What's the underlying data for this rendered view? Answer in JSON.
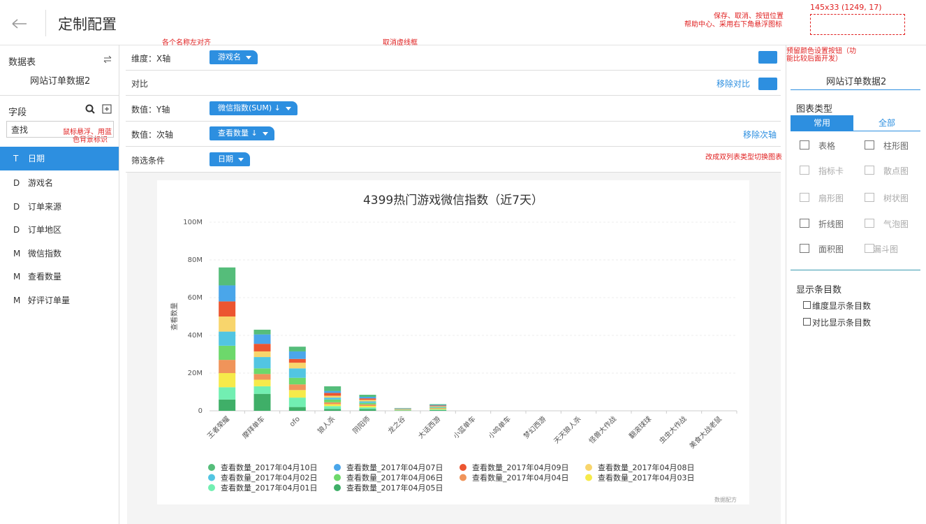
{
  "header": {
    "title": "定制配置"
  },
  "annotations": [
    "145x33 (1249, 17)",
    "保存、取消、按钮位置",
    "帮助中心、采用右下角悬浮图标",
    "各个名称左对齐",
    "取消虚线框",
    "预留颜色设置按钮（功",
    "能比较后面开发）",
    "鼠标悬浮、用蓝",
    "色背景标识",
    "改成双列表类型切换图表"
  ],
  "left": {
    "table_label": "数据表",
    "table_name": "网站订单数据2",
    "fields_label": "字段",
    "search_placeholder": "查找",
    "fields": [
      {
        "type": "T",
        "name": "日期"
      },
      {
        "type": "D",
        "name": "游戏名"
      },
      {
        "type": "D",
        "name": "订单来源"
      },
      {
        "type": "D",
        "name": "订单地区"
      },
      {
        "type": "M",
        "name": "微信指数"
      },
      {
        "type": "M",
        "name": "查看数量"
      },
      {
        "type": "M",
        "name": "好评订单量"
      }
    ]
  },
  "config": {
    "rows": [
      {
        "label": "维度：X轴",
        "pill": "游戏名"
      },
      {
        "label": "对比",
        "action": "移除对比"
      },
      {
        "label": "数值：Y轴",
        "pill": "微信指数(SUM) ↓"
      },
      {
        "label": "数值：次轴",
        "pill": "查看数量 ↓",
        "action": "移除次轴"
      },
      {
        "label": "筛选条件",
        "pill": "日期"
      }
    ]
  },
  "right": {
    "table_name": "网站订单数据2",
    "chart_types_label": "图表类型",
    "tabs": [
      "常用",
      "全部"
    ],
    "chart_types": [
      "表格",
      "柱形图",
      "指标卡",
      "散点图",
      "扇形图",
      "树状图",
      "折线图",
      "气泡图",
      "面积图",
      "漏斗图"
    ],
    "display_label": "显示条目数",
    "checkboxes": [
      "维度显示条目数",
      "对比显示条目数"
    ]
  },
  "chart_data": {
    "type": "stacked_bar",
    "title": "4399热门游戏微信指数（近7天）",
    "y_label": "查看数量",
    "watermark": "数据配方",
    "categories": [
      "王者荣耀",
      "摩拜单车",
      "ofo",
      "狼人杀",
      "阴阳师",
      "龙之谷",
      "大话西游",
      "小蓝单车",
      "小鸣单车",
      "梦幻西游",
      "天天狼人杀",
      "怪兽大作战",
      "翻滚球球",
      "虫虫大作战",
      "美食大战老鼠"
    ],
    "ylim": [
      0,
      100
    ],
    "yticks": [
      0,
      {
        "value": 20,
        "label": "20M"
      },
      {
        "value": 40,
        "label": "40M"
      },
      {
        "value": 60,
        "label": "60M"
      },
      {
        "value": 80,
        "label": "80M"
      },
      {
        "value": 100,
        "label": "100M"
      }
    ],
    "grid": true,
    "series": [
      {
        "name": "查看数量_2017年04月10日",
        "color": "#55bd7a",
        "values": [
          9.5,
          2.5,
          2.5,
          2.5,
          1.1,
          0.15,
          0.35,
          0,
          0,
          0,
          0,
          0,
          0,
          0,
          0
        ]
      },
      {
        "name": "查看数量_2017年04月07日",
        "color": "#4aa6ea",
        "values": [
          8.5,
          5,
          4,
          1,
          0.8,
          0.15,
          0.35,
          0,
          0,
          0,
          0,
          0,
          0,
          0,
          0
        ]
      },
      {
        "name": "查看数量_2017年04月09日",
        "color": "#ec5530",
        "values": [
          8,
          4,
          2,
          1.5,
          0.8,
          0.15,
          0.35,
          0,
          0,
          0,
          0,
          0,
          0,
          0,
          0
        ]
      },
      {
        "name": "查看数量_2017年04月08日",
        "color": "#f8d56c",
        "values": [
          8,
          3,
          3,
          1,
          0.8,
          0.15,
          0.35,
          0,
          0,
          0,
          0,
          0,
          0,
          0,
          0
        ]
      },
      {
        "name": "查看数量_2017年04月02日",
        "color": "#52c5e2",
        "values": [
          7.5,
          6,
          5,
          1,
          0.8,
          0.15,
          0.35,
          0,
          0,
          0,
          0,
          0,
          0,
          0,
          0
        ]
      },
      {
        "name": "查看数量_2017年04月06日",
        "color": "#6dd86b",
        "values": [
          7.5,
          3,
          3.5,
          1.5,
          0.8,
          0.15,
          0.35,
          0,
          0,
          0,
          0,
          0,
          0,
          0,
          0
        ]
      },
      {
        "name": "查看数量_2017年04月04日",
        "color": "#f0945a",
        "values": [
          7,
          3,
          3,
          1,
          0.8,
          0.15,
          0.35,
          0,
          0,
          0,
          0,
          0,
          0,
          0,
          0
        ]
      },
      {
        "name": "查看数量_2017年04月03日",
        "color": "#f6ea4a",
        "values": [
          7.5,
          3.5,
          4,
          1,
          0.8,
          0.15,
          0.35,
          0,
          0,
          0,
          0,
          0,
          0,
          0,
          0
        ]
      },
      {
        "name": "查看数量_2017年04月01日",
        "color": "#72efb2",
        "values": [
          6.5,
          4,
          5,
          1.5,
          0.8,
          0.15,
          0.35,
          0,
          0,
          0,
          0,
          0,
          0,
          0,
          0
        ]
      },
      {
        "name": "查看数量_2017年04月05日",
        "color": "#3faf68",
        "values": [
          6,
          9,
          2,
          1,
          1,
          0.15,
          0.35,
          0,
          0,
          0,
          0,
          0,
          0,
          0,
          0
        ]
      }
    ]
  }
}
